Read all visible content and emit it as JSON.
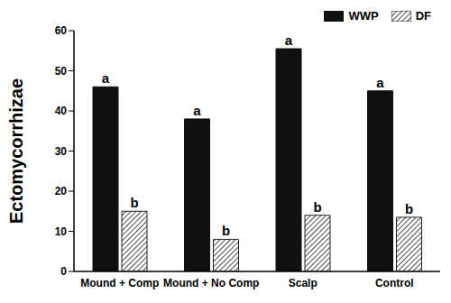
{
  "chart_data": {
    "type": "bar",
    "y_label": "Ectomycorrhizae",
    "categories": [
      "Mound + Comp",
      "Mound + No Comp",
      "Scalp",
      "Control"
    ],
    "series": [
      {
        "name": "WWP",
        "color": "#111111",
        "values": [
          46,
          38,
          55.5,
          45
        ],
        "annotations": [
          "a",
          "a",
          "a",
          "a"
        ]
      },
      {
        "name": "DF",
        "color": "#222222",
        "values": [
          15,
          8,
          14,
          13.5
        ],
        "annotations": [
          "b",
          "b",
          "b",
          "b"
        ]
      }
    ],
    "ylim": [
      0,
      60
    ],
    "yticks": [
      0,
      10,
      20,
      30,
      40,
      50,
      60
    ],
    "grid": false,
    "legend": "upper right"
  }
}
